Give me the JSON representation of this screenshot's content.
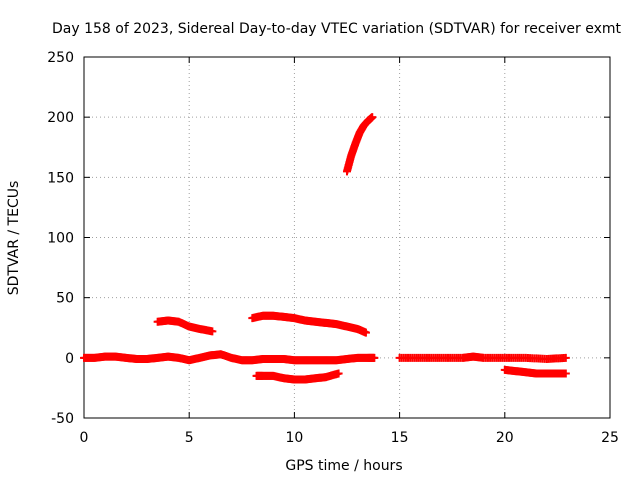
{
  "chart_data": {
    "type": "scatter",
    "title": "Day 158 of 2023, Sidereal Day-to-day VTEC variation (SDTVAR) for receiver exmt",
    "xlabel": "GPS time / hours",
    "ylabel": "SDTVAR / TECUs",
    "xlim": [
      0,
      25
    ],
    "ylim": [
      -50,
      250
    ],
    "xticks": [
      "0",
      "5",
      "10",
      "15",
      "20",
      "25"
    ],
    "yticks": [
      "-50",
      "0",
      "50",
      "100",
      "150",
      "200",
      "250"
    ],
    "grid": true,
    "marker": "plus",
    "color": "#ff0000",
    "series": [
      {
        "x": [
          0,
          0.5,
          1,
          1.5,
          2,
          2.5,
          3,
          3.5,
          4,
          4.5,
          5,
          5.5,
          6,
          6.5,
          7,
          7.5,
          8,
          8.5,
          9,
          9.5,
          10,
          10.5,
          11,
          11.5,
          12,
          12.5,
          13,
          13.5,
          13.8
        ],
        "y": [
          0,
          0,
          1,
          1,
          0,
          -1,
          -1,
          0,
          1,
          0,
          -2,
          0,
          2,
          3,
          0,
          -2,
          -2,
          -1,
          -1,
          -1,
          -2,
          -2,
          -2,
          -2,
          -2,
          -1,
          0,
          0,
          0
        ]
      },
      {
        "x": [
          3.5,
          4,
          4.5,
          5,
          5.5,
          6.1
        ],
        "y": [
          30,
          31,
          30,
          26,
          24,
          22
        ]
      },
      {
        "x": [
          8,
          8.5,
          9,
          9.5,
          10,
          10.5,
          11,
          11.5,
          12,
          12.5,
          13,
          13.4
        ],
        "y": [
          33,
          35,
          35,
          34,
          33,
          31,
          30,
          29,
          28,
          26,
          24,
          21
        ]
      },
      {
        "x": [
          8.2,
          8.5,
          9,
          9.5,
          10,
          10.5,
          11,
          11.5,
          12.1
        ],
        "y": [
          -15,
          -15,
          -15,
          -17,
          -18,
          -18,
          -17,
          -16,
          -13
        ]
      },
      {
        "x": [
          12.5,
          12.7,
          12.9,
          13.1,
          13.3,
          13.5,
          13.7
        ],
        "y": [
          155,
          168,
          178,
          187,
          193,
          197,
          200
        ]
      },
      {
        "x": [
          15,
          16,
          17,
          18,
          18.5,
          19,
          20,
          21,
          22,
          22.9
        ],
        "y": [
          0,
          0,
          0,
          0,
          1,
          0,
          0,
          0,
          -1,
          0
        ]
      },
      {
        "x": [
          20,
          20.5,
          21,
          21.5,
          22,
          22.5,
          22.9
        ],
        "y": [
          -10,
          -11,
          -12,
          -13,
          -13,
          -13,
          -13
        ]
      }
    ]
  }
}
